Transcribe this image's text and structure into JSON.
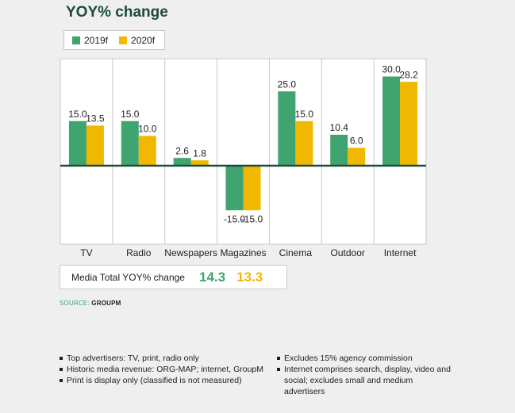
{
  "title": "YOY% change",
  "legend": {
    "items": [
      {
        "label": "2019f",
        "color": "#3fa46f"
      },
      {
        "label": "2020f",
        "color": "#f0b800"
      }
    ]
  },
  "chart_data": {
    "type": "bar",
    "categories": [
      "TV",
      "Radio",
      "Newspapers",
      "Magazines",
      "Cinema",
      "Outdoor",
      "Internet"
    ],
    "series": [
      {
        "name": "2019f",
        "color": "#3fa46f",
        "values": [
          15.0,
          15.0,
          2.6,
          -15.0,
          25.0,
          10.4,
          30.0
        ]
      },
      {
        "name": "2020f",
        "color": "#f0b800",
        "values": [
          13.5,
          10.0,
          1.8,
          -15.0,
          15.0,
          6.0,
          28.2
        ]
      }
    ],
    "ylim": [
      -25,
      36
    ],
    "grid": false,
    "legend_position": "top-left"
  },
  "total": {
    "label": "Media Total YOY% change",
    "value_2019": "14.3",
    "value_2020": "13.3"
  },
  "source": {
    "prefix": "SOURCE:",
    "name": "GROUPM"
  },
  "notes": {
    "left": [
      "Top advertisers: TV, print, radio only",
      "Historic media revenue: ORG-MAP; internet, GroupM",
      "Print is display only (classified is not measured)"
    ],
    "right": [
      "Excludes 15% agency commission",
      "Internet comprises search, display, video and social; excludes small and medium advertisers"
    ]
  }
}
